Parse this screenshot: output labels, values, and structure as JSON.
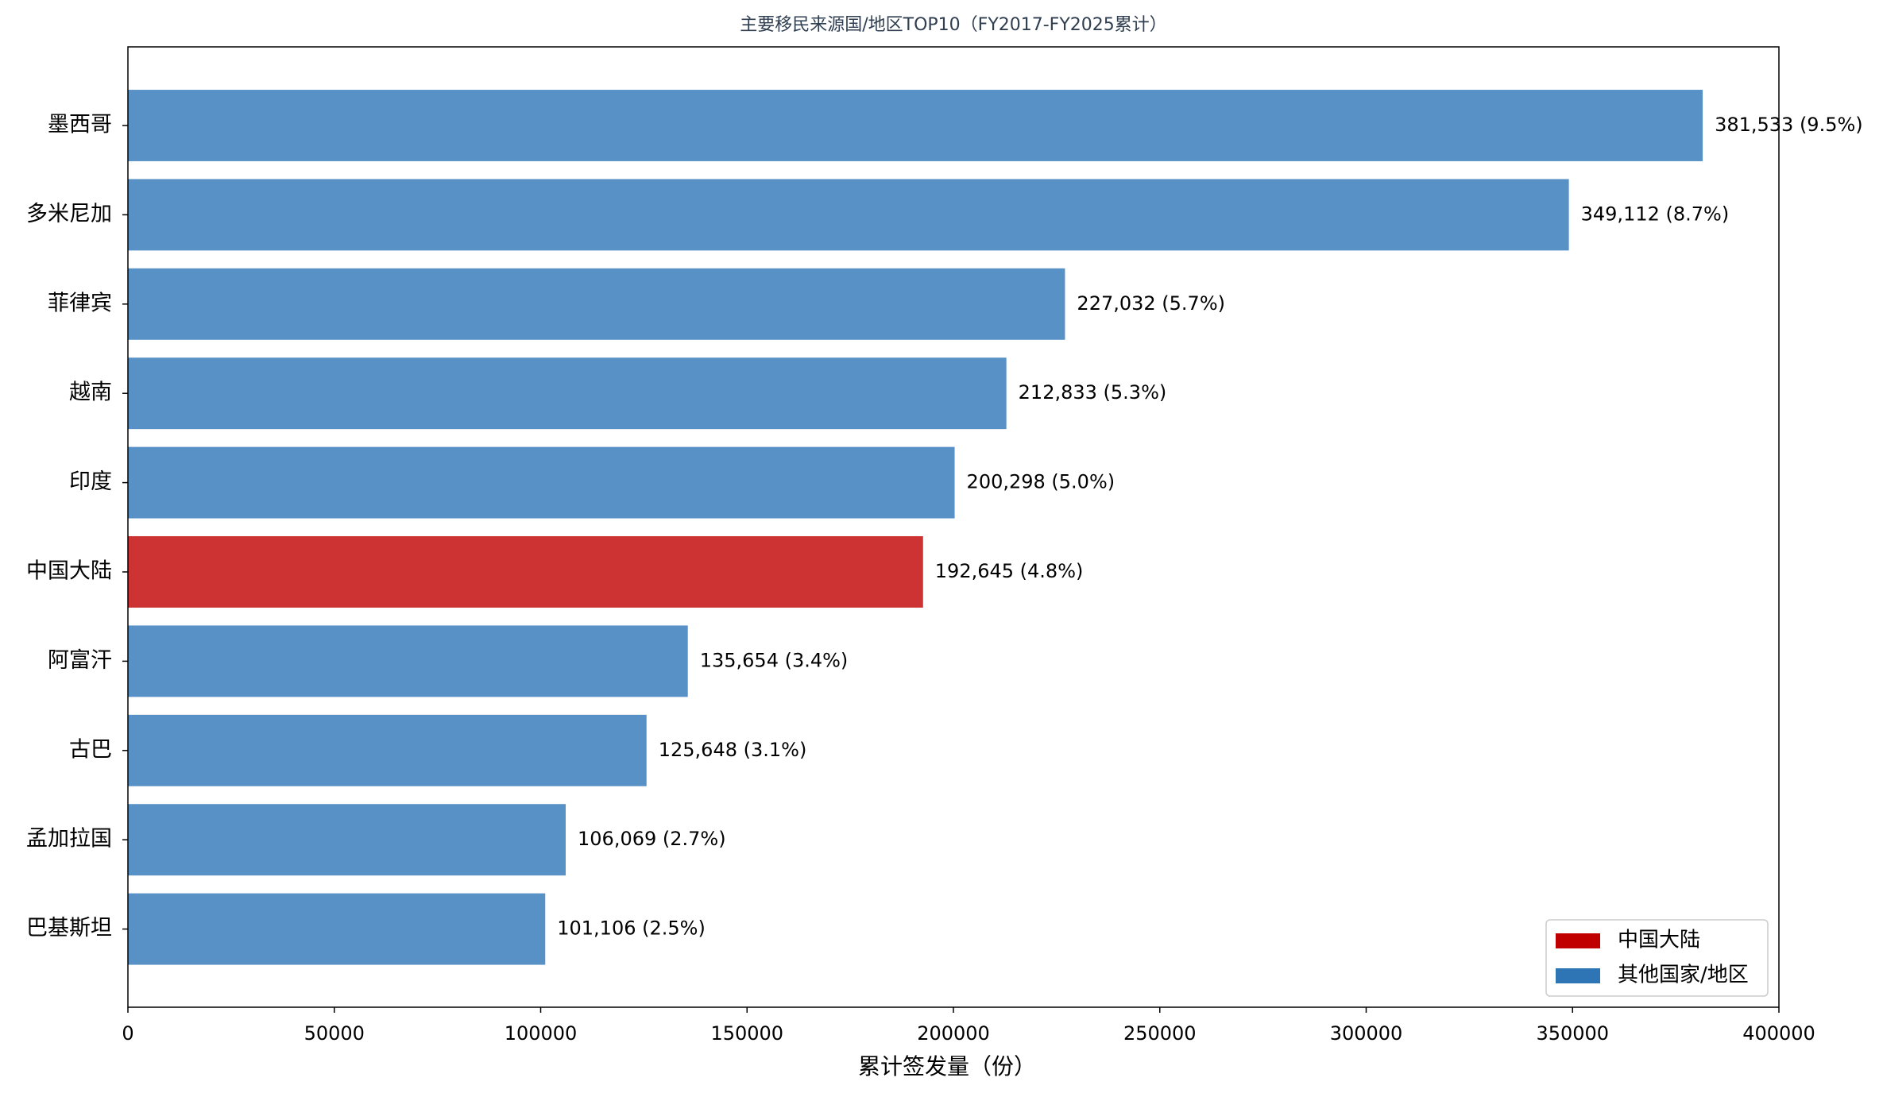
{
  "chart_data": {
    "type": "barh",
    "title": "主要移民来源国/地区TOP10（FY2017-FY2025累计）",
    "x_label": "累计签发量（份）",
    "categories": [
      "墨西哥",
      "多米尼加",
      "菲律宾",
      "越南",
      "印度",
      "中国大陆",
      "阿富汗",
      "古巴",
      "孟加拉国",
      "巴基斯坦"
    ],
    "values": [
      381533,
      349112,
      227032,
      212833,
      200298,
      192645,
      135654,
      125648,
      106069,
      101106
    ],
    "value_labels": [
      "381,533 (9.5%)",
      "349,112 (8.7%)",
      "227,032 (5.7%)",
      "212,833 (5.3%)",
      "200,298 (5.0%)",
      "192,645 (4.8%)",
      "135,654 (3.4%)",
      "125,648 (3.1%)",
      "106,069 (2.7%)",
      "101,106 (2.5%)"
    ],
    "colors": [
      "#2e75b6",
      "#2e75b6",
      "#2e75b6",
      "#2e75b6",
      "#2e75b6",
      "#c00000",
      "#2e75b6",
      "#2e75b6",
      "#2e75b6",
      "#2e75b6"
    ],
    "legend": [
      {
        "name": "中国大陆",
        "color": "#c00000"
      },
      {
        "name": "其他国家/地区",
        "color": "#2e75b6"
      }
    ],
    "legend_position": "lower right",
    "xlim": [
      0,
      400000
    ],
    "xticks": [
      0,
      50000,
      100000,
      150000,
      200000,
      250000,
      300000,
      350000,
      400000
    ],
    "grid": false
  }
}
